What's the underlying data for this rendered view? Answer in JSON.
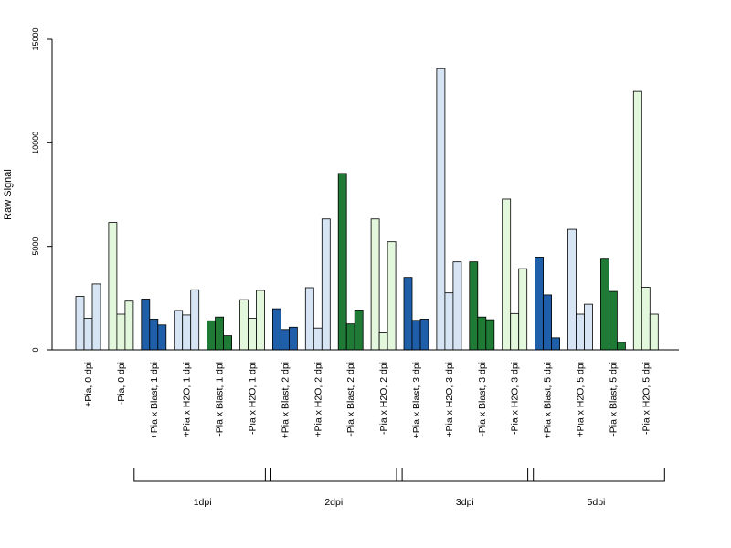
{
  "chart_data": {
    "type": "bar",
    "ylabel": "Raw Signal",
    "xlabel": "",
    "ylim": [
      0,
      15000
    ],
    "yticks": [
      0,
      5000,
      10000,
      15000
    ],
    "grid": false,
    "legend": "none",
    "categories": [
      "+Pia, 0 dpi",
      "-Pia, 0 dpi",
      "+Pia x Blast, 1 dpi",
      "+Pia x H2O, 1 dpi",
      "-Pia x Blast, 1 dpi",
      "-Pia x H2O, 1 dpi",
      "+Pia x Blast, 2 dpi",
      "+Pia x H2O, 2 dpi",
      "-Pia x Blast, 2 dpi",
      "-Pia x H2O, 2 dpi",
      "+Pia x Blast, 3 dpi",
      "+Pia x H2O, 3 dpi",
      "-Pia x Blast, 3 dpi",
      "-Pia x H2O, 3 dpi",
      "+Pia x Blast, 5 dpi",
      "+Pia x H2O, 5 dpi",
      "-Pia x Blast, 5 dpi",
      "-Pia x H2O, 5 dpi"
    ],
    "colors": [
      "#d6e4f4",
      "#e2f7dc",
      "#1f5ea8",
      "#d6e4f4",
      "#1e7a34",
      "#e2f7dc",
      "#1f5ea8",
      "#d6e4f4",
      "#1e7a34",
      "#e2f7dc",
      "#1f5ea8",
      "#d6e4f4",
      "#1e7a34",
      "#e2f7dc",
      "#1f5ea8",
      "#d6e4f4",
      "#1e7a34",
      "#e2f7dc"
    ],
    "replicates": [
      [
        2580,
        1520,
        3180
      ],
      [
        6150,
        1720,
        2350
      ],
      [
        2450,
        1480,
        1200
      ],
      [
        1900,
        1680,
        2900
      ],
      [
        1400,
        1580,
        680
      ],
      [
        2420,
        1520,
        2870
      ],
      [
        1980,
        980,
        1090
      ],
      [
        3000,
        1050,
        6320
      ],
      [
        8520,
        1250,
        1920
      ],
      [
        6320,
        820,
        5220
      ],
      [
        3500,
        1420,
        1480
      ],
      [
        13580,
        2750,
        4250
      ],
      [
        4250,
        1580,
        1450
      ],
      [
        7280,
        1750,
        3920
      ],
      [
        4480,
        2650,
        580
      ],
      [
        5820,
        1720,
        2200
      ],
      [
        4380,
        2820,
        360
      ],
      [
        12480,
        3020,
        1720
      ]
    ],
    "groups": [
      {
        "label": "1dpi",
        "from": 2,
        "to": 5
      },
      {
        "label": "2dpi",
        "from": 6,
        "to": 9
      },
      {
        "label": "3dpi",
        "from": 10,
        "to": 13
      },
      {
        "label": "5dpi",
        "from": 14,
        "to": 17
      }
    ]
  }
}
